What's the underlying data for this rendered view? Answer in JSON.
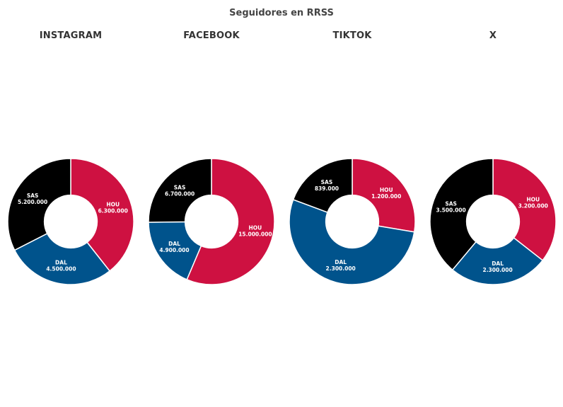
{
  "chart_data": {
    "type": "pie",
    "title": "Seguidores en RRSS",
    "colors": {
      "HOU": "#ce1141",
      "DAL": "#00538c",
      "SAS": "#000000"
    },
    "hole": 0.42,
    "direction": "clockwise",
    "charts": [
      {
        "subtitle": "INSTAGRAM",
        "slices": [
          {
            "label": "HOU",
            "value": 6300000,
            "text": "6.300.000"
          },
          {
            "label": "DAL",
            "value": 4500000,
            "text": "4.500.000"
          },
          {
            "label": "SAS",
            "value": 5200000,
            "text": "5.200.000"
          }
        ]
      },
      {
        "subtitle": "FACEBOOK",
        "slices": [
          {
            "label": "HOU",
            "value": 15000000,
            "text": "15.000.000"
          },
          {
            "label": "DAL",
            "value": 4900000,
            "text": "4.900.000"
          },
          {
            "label": "SAS",
            "value": 6700000,
            "text": "6.700.000"
          }
        ]
      },
      {
        "subtitle": "TIKTOK",
        "slices": [
          {
            "label": "HOU",
            "value": 1200000,
            "text": "1.200.000"
          },
          {
            "label": "DAL",
            "value": 2300000,
            "text": "2.300.000"
          },
          {
            "label": "SAS",
            "value": 839000,
            "text": "839.000"
          }
        ]
      },
      {
        "subtitle": "X",
        "slices": [
          {
            "label": "HOU",
            "value": 3200000,
            "text": "3.200.000"
          },
          {
            "label": "DAL",
            "value": 2300000,
            "text": "2.300.000"
          },
          {
            "label": "SAS",
            "value": 3500000,
            "text": "3.500.000"
          }
        ]
      }
    ]
  }
}
